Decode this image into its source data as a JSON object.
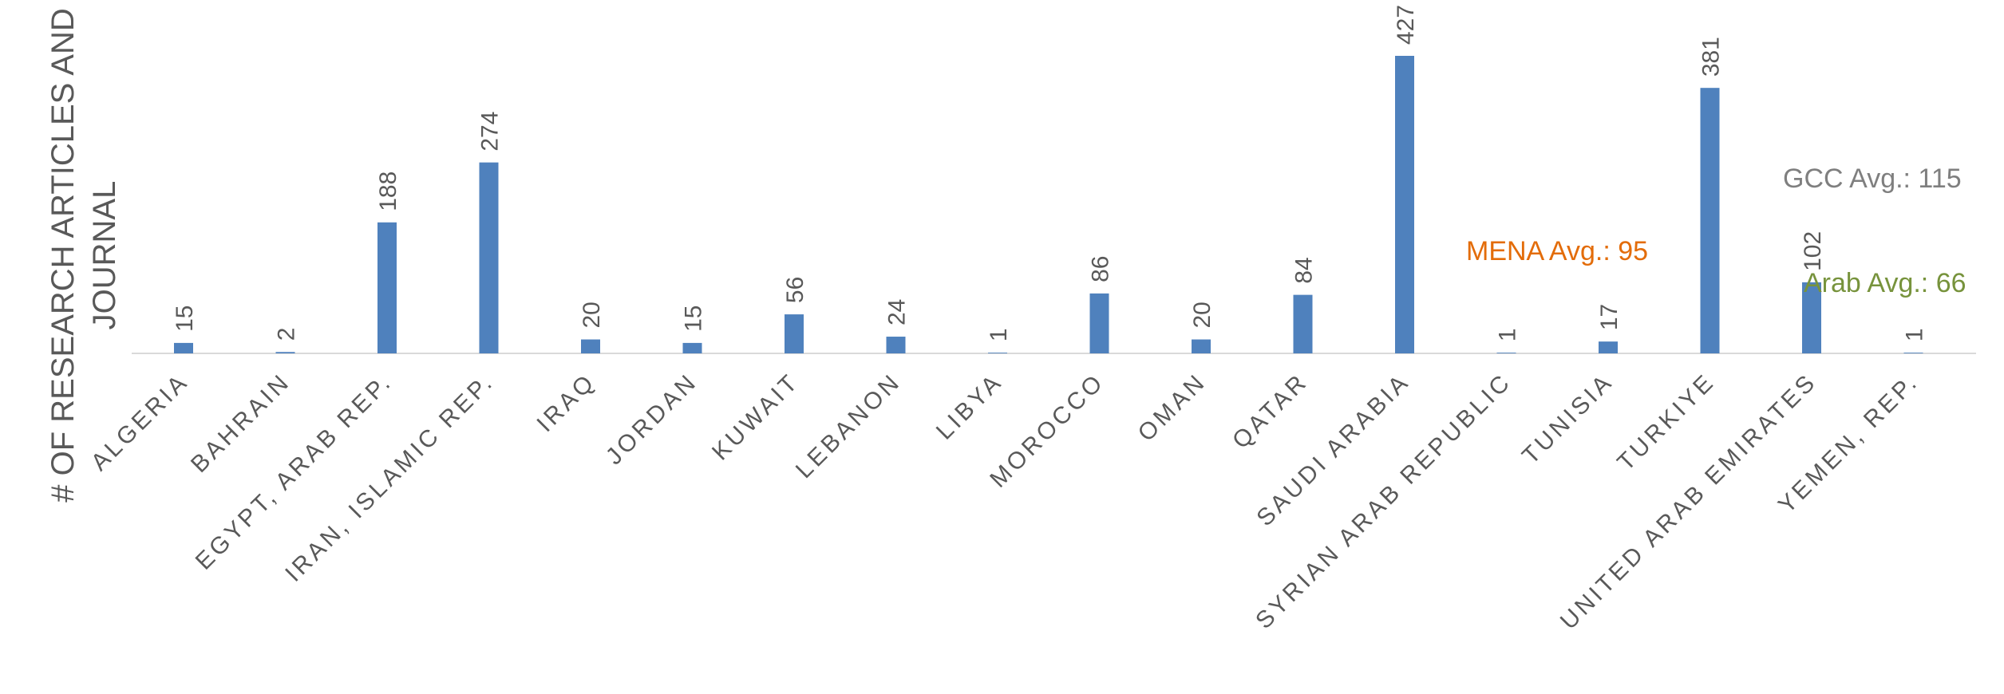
{
  "chart_data": {
    "type": "bar",
    "title": "",
    "xlabel": "",
    "ylabel": "# OF RESEARCH ARTICLES AND JOURNAL",
    "ylabel_lines": [
      "# OF RESEARCH ARTICLES AND",
      "JOURNAL"
    ],
    "categories": [
      "ALGERIA",
      "BAHRAIN",
      "EGYPT, ARAB REP.",
      "IRAN, ISLAMIC REP.",
      "IRAQ",
      "JORDAN",
      "KUWAIT",
      "LEBANON",
      "LIBYA",
      "MOROCCO",
      "OMAN",
      "QATAR",
      "SAUDI ARABIA",
      "SYRIAN ARAB REPUBLIC",
      "TUNISIA",
      "TURKIYE",
      "UNITED ARAB EMIRATES",
      "YEMEN, REP."
    ],
    "values": [
      15,
      2,
      188,
      274,
      20,
      15,
      56,
      24,
      1,
      86,
      20,
      84,
      427,
      1,
      17,
      381,
      102,
      1
    ],
    "ylim": [
      0,
      427
    ],
    "grid": false,
    "legend": "none",
    "bar_color": "#4f81bd",
    "annotations": [
      {
        "text": "GCC Avg.: 115",
        "color": "#7f7f7f"
      },
      {
        "text": "MENA Avg.: 95",
        "color": "#e36c09"
      },
      {
        "text": "Arab Avg.: 66",
        "color": "#77933c"
      }
    ]
  }
}
